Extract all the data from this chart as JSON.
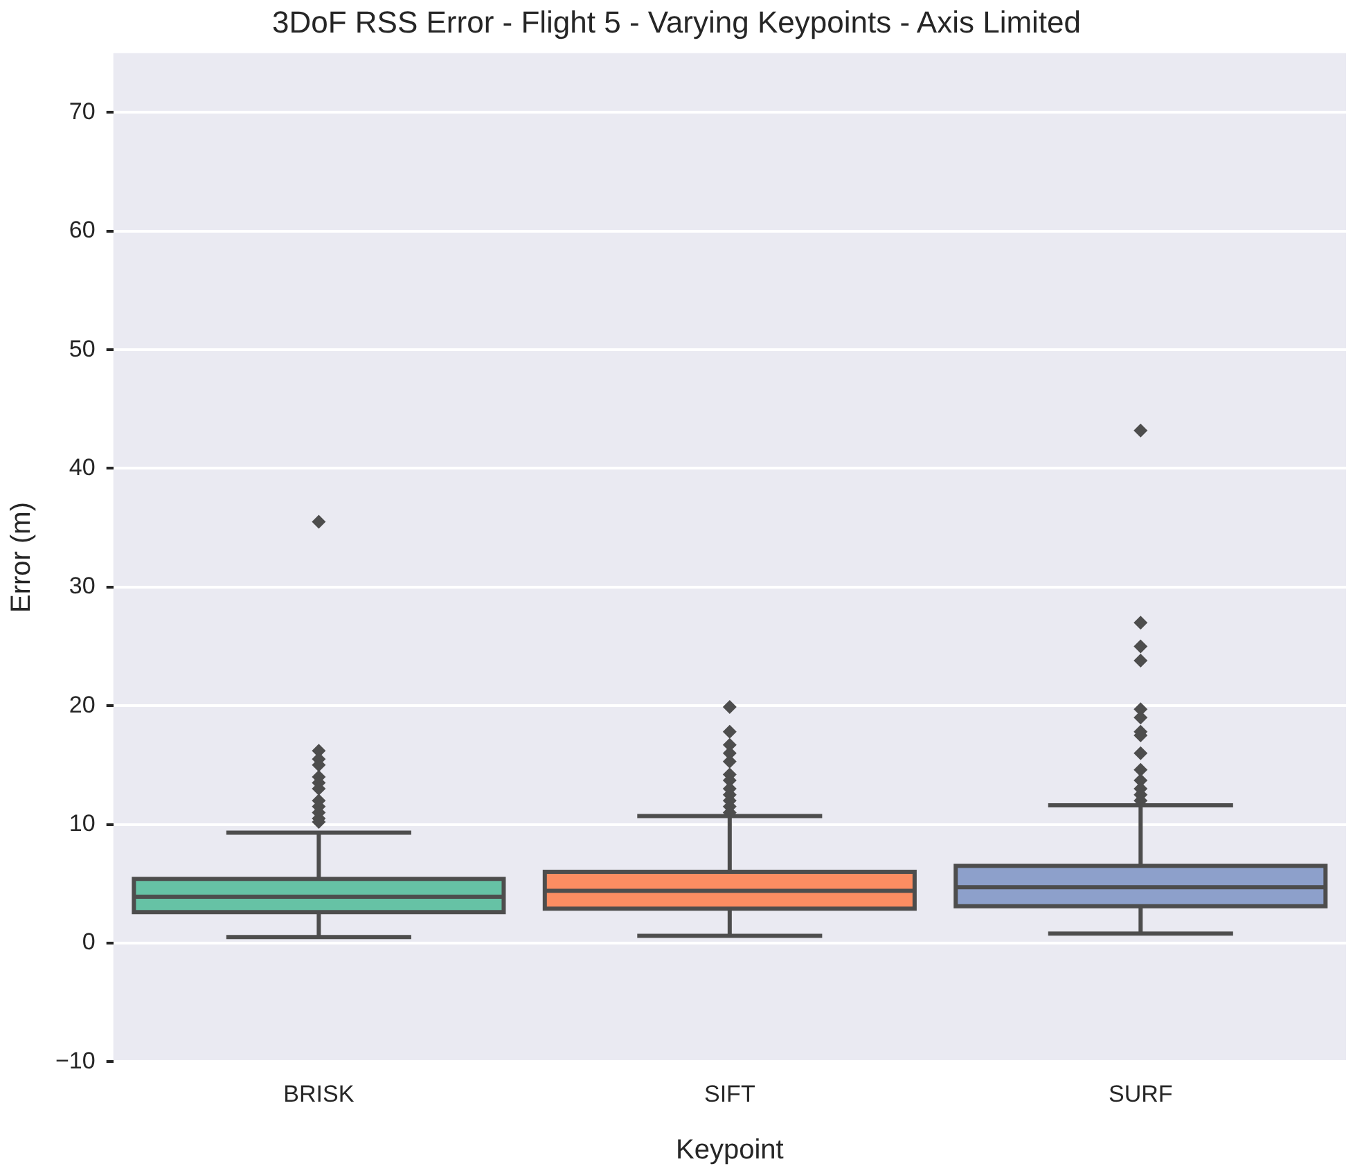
{
  "chart_data": {
    "type": "box",
    "title": "3DoF RSS Error - Flight 5 - Varying Keypoints - Axis Limited",
    "xlabel": "Keypoint",
    "ylabel": "Error (m)",
    "categories": [
      "BRISK",
      "SIFT",
      "SURF"
    ],
    "colors": [
      "#66c2a5",
      "#fc8d62",
      "#8da0cb"
    ],
    "boxes": [
      {
        "low": 0.5,
        "q1": 2.6,
        "median": 3.9,
        "q3": 5.4,
        "high": 9.3,
        "outliers": [
          35.5,
          16.2,
          15.5,
          15,
          14,
          13.5,
          13,
          12,
          11.5,
          11,
          10.5,
          10.2
        ]
      },
      {
        "low": 0.6,
        "q1": 2.9,
        "median": 4.4,
        "q3": 6.0,
        "high": 10.7,
        "outliers": [
          19.9,
          17.8,
          16.7,
          16,
          15.3,
          14.2,
          13.7,
          13,
          12.5,
          12,
          11.5,
          11
        ]
      },
      {
        "low": 0.8,
        "q1": 3.1,
        "median": 4.7,
        "q3": 6.5,
        "high": 11.6,
        "outliers": [
          43.2,
          27,
          25,
          23.8,
          19.7,
          19,
          17.8,
          17.5,
          16,
          14.6,
          13.7,
          13,
          12.5,
          12
        ]
      }
    ],
    "ylim": [
      -10,
      75
    ],
    "yticks": [
      {
        "value": -10,
        "label": "−10"
      },
      0,
      10,
      20,
      30,
      40,
      50,
      60,
      70
    ],
    "grid": "y",
    "marker": "diamond"
  }
}
